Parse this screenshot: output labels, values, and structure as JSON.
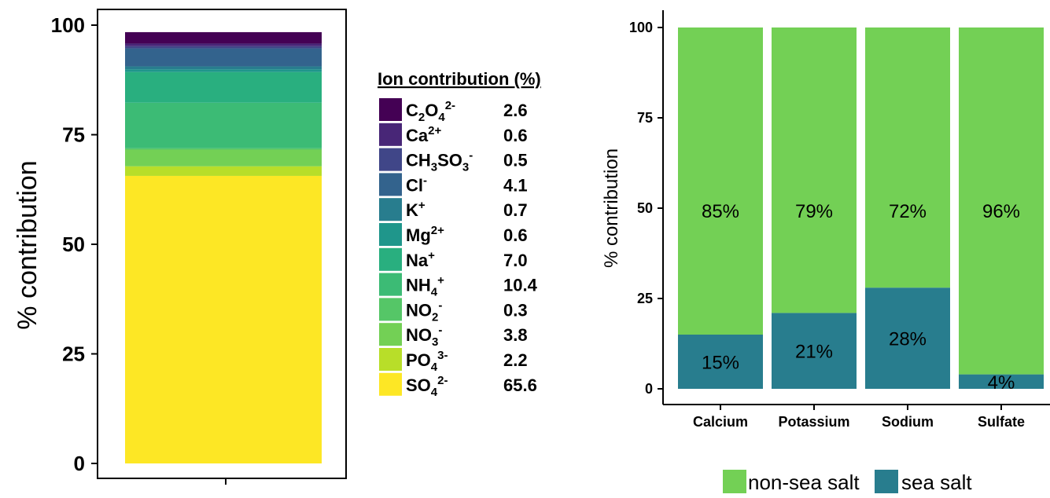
{
  "colors": {
    "ions": [
      "#440154",
      "#482677",
      "#404688",
      "#33638D",
      "#287D8E",
      "#1F968B",
      "#29AF7F",
      "#3CBB75",
      "#55C667",
      "#73D055",
      "#B8DE29",
      "#FDE725"
    ],
    "non_sea_salt": "#73D055",
    "sea_salt": "#287D8E"
  },
  "chart_data": [
    {
      "type": "bar",
      "stacked": true,
      "ylabel": "% contribution",
      "ylim": [
        0,
        100
      ],
      "yticks": [
        "0",
        "25",
        "50",
        "75",
        "100"
      ],
      "legend": {
        "title": "Ion contribution (%)",
        "position": "right",
        "entries": [
          {
            "base": "C",
            "sub": "2",
            "base2": "O",
            "sub2": "4",
            "sup": "2-",
            "value": "2.6",
            "num": 2.6
          },
          {
            "base": "Ca",
            "sup": "2+",
            "value": "0.6",
            "num": 0.6
          },
          {
            "base": "CH",
            "sub": "3",
            "base2": "SO",
            "sub2": "3",
            "sup": "-",
            "value": "0.5",
            "num": 0.5
          },
          {
            "base": "Cl",
            "sup": "-",
            "value": "4.1",
            "num": 4.1
          },
          {
            "base": "K",
            "sup": "+",
            "value": "0.7",
            "num": 0.7
          },
          {
            "base": "Mg",
            "sup": "2+",
            "value": "0.6",
            "num": 0.6
          },
          {
            "base": "Na",
            "sup": "+",
            "value": "7.0",
            "num": 7.0
          },
          {
            "base": "NH",
            "sub": "4",
            "sup": "+",
            "value": "10.4",
            "num": 10.4
          },
          {
            "base": "NO",
            "sub": "2",
            "sup": "-",
            "value": "0.3",
            "num": 0.3
          },
          {
            "base": "NO",
            "sub": "3",
            "sup": "-",
            "value": "3.8",
            "num": 3.8
          },
          {
            "base": "PO",
            "sub": "4",
            "sup": "3-",
            "value": "2.2",
            "num": 2.2
          },
          {
            "base": "SO",
            "sub": "4",
            "sup": "2-",
            "value": "65.6",
            "num": 65.6
          }
        ]
      }
    },
    {
      "type": "bar",
      "stacked": true,
      "ylabel": "% contribution",
      "ylim": [
        0,
        100
      ],
      "yticks": [
        "0",
        "25",
        "50",
        "75",
        "100"
      ],
      "categories": [
        "Calcium",
        "Potassium",
        "Sodium",
        "Sulfate"
      ],
      "series": [
        {
          "name": "sea salt",
          "values": [
            15,
            21,
            28,
            4
          ],
          "labels": [
            "15%",
            "21%",
            "28%",
            "4%"
          ]
        },
        {
          "name": "non-sea salt",
          "values": [
            85,
            79,
            72,
            96
          ],
          "labels": [
            "85%",
            "79%",
            "72%",
            "96%"
          ]
        }
      ],
      "legend": {
        "position": "bottom",
        "entries": [
          "non-sea salt",
          "sea salt"
        ]
      }
    }
  ]
}
